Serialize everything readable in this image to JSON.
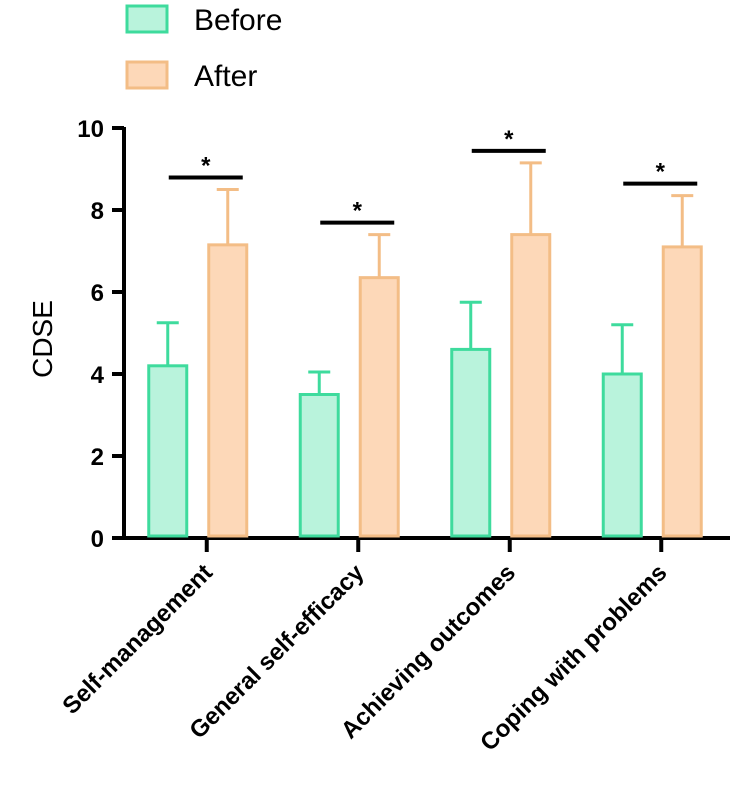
{
  "chart_data": {
    "type": "bar",
    "title": "",
    "xlabel": "",
    "ylabel": "CDSE",
    "ylim": [
      0,
      10
    ],
    "yticks": [
      0,
      2,
      4,
      6,
      8,
      10
    ],
    "categories": [
      "Self-management",
      "General self-efficacy",
      "Achieving outcomes",
      "Coping with problems"
    ],
    "series": [
      {
        "name": "Before",
        "values": [
          4.2,
          3.5,
          4.6,
          4.0
        ],
        "errors": [
          1.05,
          0.55,
          1.15,
          1.2
        ],
        "fill": "#B9F3DC",
        "stroke": "#3EDB9D"
      },
      {
        "name": "After",
        "values": [
          7.15,
          6.35,
          7.4,
          7.1
        ],
        "errors": [
          1.35,
          1.05,
          1.75,
          1.25
        ],
        "fill": "#FDD8B8",
        "stroke": "#F3BD86"
      }
    ],
    "significance": [
      "*",
      "*",
      "*",
      "*"
    ],
    "legend": {
      "position": "top-left",
      "entries": [
        "Before",
        "After"
      ]
    }
  }
}
